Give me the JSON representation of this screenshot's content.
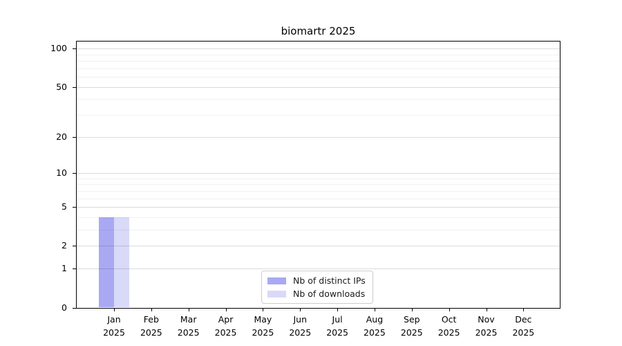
{
  "chart_data": {
    "type": "bar",
    "title": "biomartr 2025",
    "categories": [
      "Jan",
      "Feb",
      "Mar",
      "Apr",
      "May",
      "Jun",
      "Jul",
      "Aug",
      "Sep",
      "Oct",
      "Nov",
      "Dec"
    ],
    "year_label": "2025",
    "series": [
      {
        "name": "Nb of distinct IPs",
        "color": "#a9a9f3",
        "values": [
          4,
          0,
          0,
          0,
          0,
          0,
          0,
          0,
          0,
          0,
          0,
          0
        ]
      },
      {
        "name": "Nb of downloads",
        "color": "#d9d9f8",
        "values": [
          4,
          0,
          0,
          0,
          0,
          0,
          0,
          0,
          0,
          0,
          0,
          0
        ]
      }
    ],
    "y_axis": {
      "scale": "log1p",
      "ticks": [
        0,
        1,
        2,
        5,
        10,
        20,
        50,
        100
      ],
      "minor_gridlines": [
        3,
        4,
        6,
        7,
        8,
        9,
        30,
        40,
        60,
        70,
        80,
        90
      ],
      "ylim": [
        0,
        115
      ]
    },
    "xlabel": "",
    "ylabel": "",
    "grid": true,
    "legend_position": "inside-bottom-center"
  }
}
